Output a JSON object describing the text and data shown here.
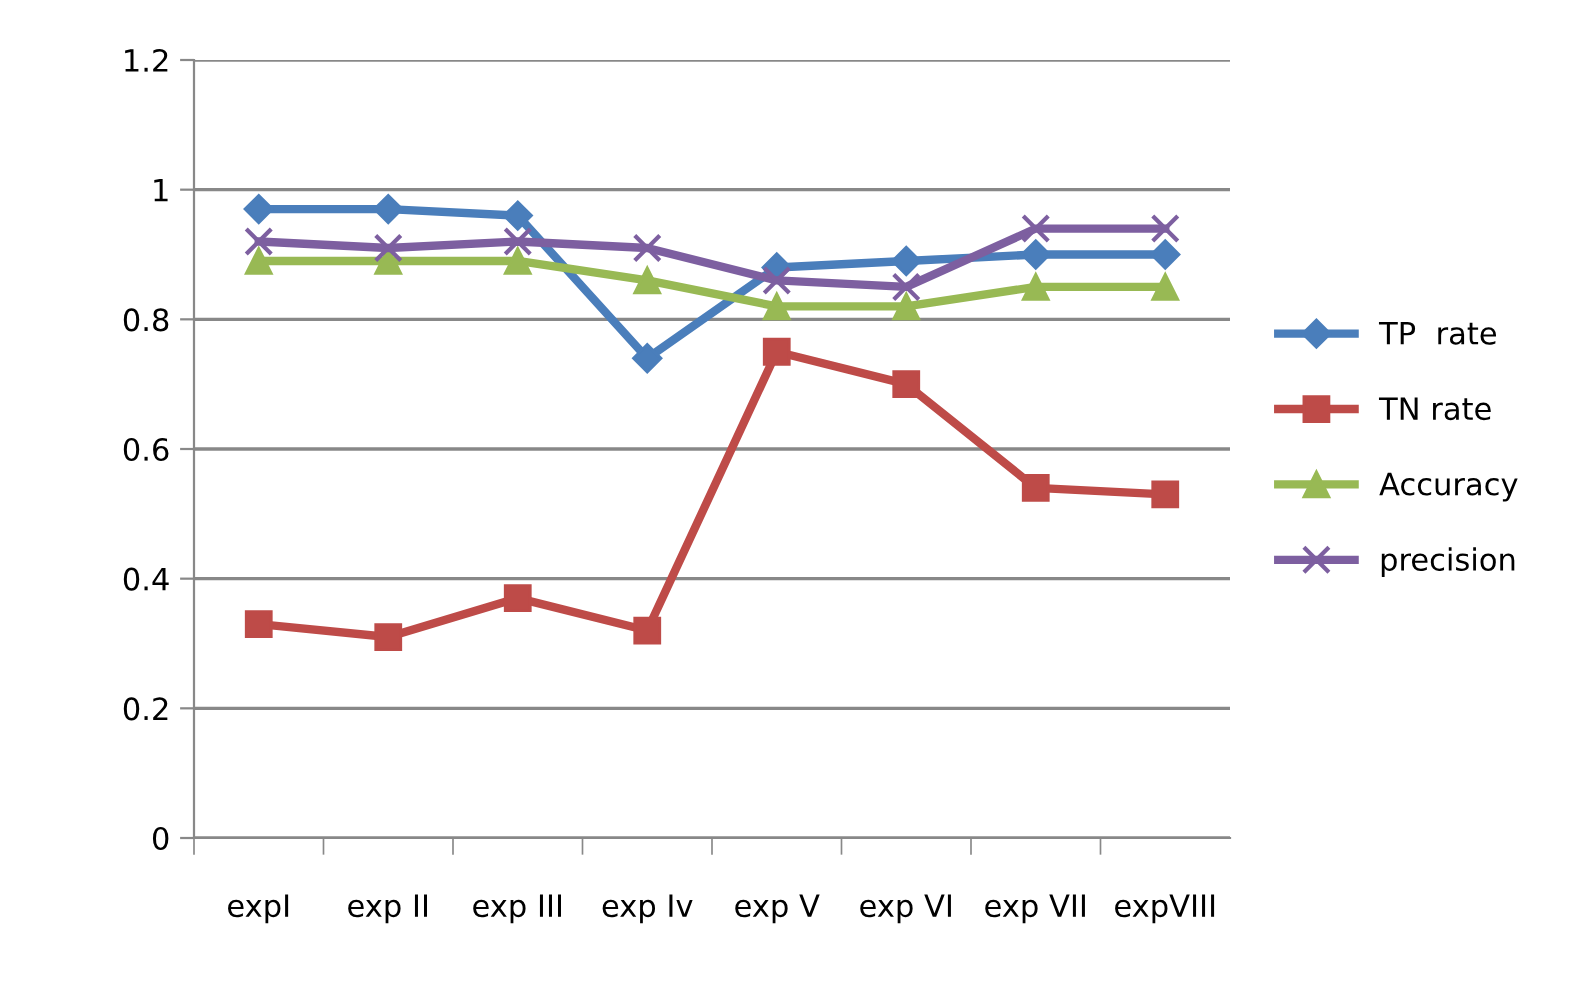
{
  "chart_data": {
    "type": "line",
    "categories": [
      "expI",
      "exp II",
      "exp III",
      "exp Iv",
      "exp V",
      "exp VI",
      "exp VII",
      "expVIII"
    ],
    "series": [
      {
        "name": "TP  rate",
        "color": "#4a7ebb",
        "marker": "diamond",
        "values": [
          0.97,
          0.97,
          0.96,
          0.74,
          0.88,
          0.89,
          0.9,
          0.9
        ]
      },
      {
        "name": "TN rate",
        "color": "#be4b48",
        "marker": "square",
        "values": [
          0.33,
          0.31,
          0.37,
          0.32,
          0.75,
          0.7,
          0.54,
          0.53
        ]
      },
      {
        "name": "Accuracy",
        "color": "#98b954",
        "marker": "triangle",
        "values": [
          0.89,
          0.89,
          0.89,
          0.86,
          0.82,
          0.82,
          0.85,
          0.85
        ]
      },
      {
        "name": "precision",
        "color": "#7d5fa0",
        "marker": "cross",
        "values": [
          0.92,
          0.91,
          0.92,
          0.91,
          0.86,
          0.85,
          0.94,
          0.94
        ]
      }
    ],
    "ylim": [
      0,
      1.2
    ],
    "yticks": [
      0,
      0.2,
      0.4,
      0.6,
      0.8,
      1,
      1.2
    ],
    "grid": "y",
    "legend": "right",
    "line_style": "solid"
  }
}
